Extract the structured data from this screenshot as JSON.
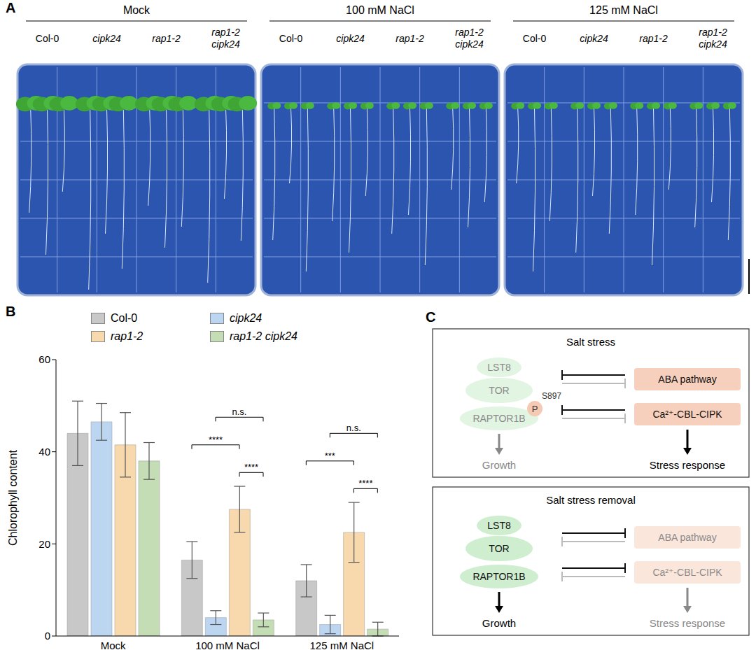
{
  "panel_A": {
    "panel": "A",
    "plates": [
      {
        "condition": "Mock",
        "genotypes": [
          "Col-0",
          "cipk24",
          "rap1-2",
          "rap1-2 cipk24"
        ]
      },
      {
        "condition": "100 mM NaCl",
        "genotypes": [
          "Col-0",
          "cipk24",
          "rap1-2",
          "rap1-2 cipk24"
        ]
      },
      {
        "condition": "125 mM NaCl",
        "genotypes": [
          "Col-0",
          "cipk24",
          "rap1-2",
          "rap1-2 cipk24"
        ]
      }
    ]
  },
  "chart_data": {
    "type": "bar",
    "panel": "B",
    "y_label": "Chlorophyll content",
    "categories": [
      "Mock",
      "100 mM NaCl",
      "125 mM NaCl"
    ],
    "series": [
      {
        "name": "Col-0",
        "color": "#c8c8c8",
        "values": [
          44,
          16.5,
          12
        ],
        "errors": [
          7,
          4,
          3.5
        ]
      },
      {
        "name": "cipk24",
        "color": "#bcd5f0",
        "values": [
          46.5,
          4,
          2.5
        ],
        "errors": [
          4,
          1.5,
          2
        ]
      },
      {
        "name": "rap1-2",
        "color": "#f7d9ad",
        "values": [
          41.5,
          27.5,
          22.5
        ],
        "errors": [
          7,
          5,
          6.5
        ]
      },
      {
        "name": "rap1-2 cipk24",
        "color": "#c5ddb5",
        "values": [
          38,
          3.5,
          1.5
        ],
        "errors": [
          4,
          1.5,
          1.5
        ]
      }
    ],
    "ylim": [
      0,
      60
    ],
    "yticks": [
      0,
      20,
      40,
      60
    ],
    "legend": "top",
    "comparisons": [
      {
        "category": "100 mM NaCl",
        "from": "Col-0",
        "to": "rap1-2",
        "label": "****"
      },
      {
        "category": "100 mM NaCl",
        "from": "cipk24",
        "to": "rap1-2 cipk24",
        "label": "n.s."
      },
      {
        "category": "100 mM NaCl",
        "from": "rap1-2",
        "to": "rap1-2 cipk24",
        "label": "****"
      },
      {
        "category": "125 mM NaCl",
        "from": "Col-0",
        "to": "rap1-2",
        "label": "***"
      },
      {
        "category": "125 mM NaCl",
        "from": "cipk24",
        "to": "rap1-2 cipk24",
        "label": "n.s."
      },
      {
        "category": "125 mM NaCl",
        "from": "rap1-2",
        "to": "rap1-2 cipk24",
        "label": "****"
      }
    ]
  },
  "panel_C": {
    "panel": "C",
    "boxes": [
      {
        "title": "Salt stress",
        "complex": [
          "LST8",
          "TOR",
          "RAPTOR1B"
        ],
        "phosphorylation": {
          "label": "P",
          "site": "S897"
        },
        "pathways": [
          "ABA pathway",
          "Ca²⁺-CBL-CIPK"
        ],
        "outputs": [
          "Growth",
          "Stress response"
        ]
      },
      {
        "title": "Salt stress removal",
        "complex": [
          "LST8",
          "TOR",
          "RAPTOR1B"
        ],
        "pathways": [
          "ABA pathway",
          "Ca²⁺-CBL-CIPK"
        ],
        "outputs": [
          "Growth",
          "Stress response"
        ]
      }
    ]
  }
}
